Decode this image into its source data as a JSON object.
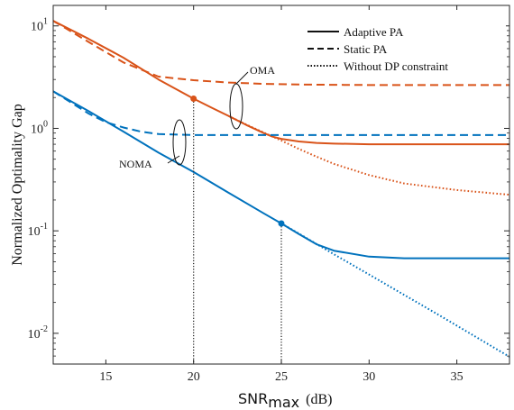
{
  "chart_data": {
    "type": "line",
    "title": "",
    "xlabel": {
      "main": "SNR",
      "subscript": "max",
      "unit": "(dB)"
    },
    "ylabel": "Normalized Optimality Gap",
    "xlim": [
      12,
      38
    ],
    "ylim_log10": [
      -2.3,
      1.2
    ],
    "yscale": "log",
    "grid": false,
    "legend_position": "top-right",
    "x_ticks": [
      15,
      20,
      25,
      30,
      35
    ],
    "y_ticks": [
      {
        "exp": -2,
        "base": "10",
        "sup": "-2"
      },
      {
        "exp": -1,
        "base": "10",
        "sup": "-1"
      },
      {
        "exp": 0,
        "base": "10",
        "sup": "0"
      },
      {
        "exp": 1,
        "base": "10",
        "sup": "1"
      }
    ],
    "legend": [
      {
        "label": "Adaptive PA",
        "dash": "solid"
      },
      {
        "label": "Static PA",
        "dash": "dashed"
      },
      {
        "label": "Without DP constraint",
        "dash": "dotted"
      }
    ],
    "colors": {
      "oma": "#D95319",
      "noma": "#0072BD"
    },
    "series": [
      {
        "group": "oma",
        "style": "solid",
        "x": [
          12,
          14,
          16,
          18,
          20,
          21,
          22,
          23,
          24,
          24.5,
          25,
          26,
          27,
          28,
          30,
          32,
          35,
          38
        ],
        "y": [
          11.2,
          7.5,
          4.9,
          3.0,
          1.95,
          1.6,
          1.32,
          1.08,
          0.9,
          0.83,
          0.79,
          0.745,
          0.72,
          0.71,
          0.7,
          0.7,
          0.7,
          0.7
        ]
      },
      {
        "group": "oma",
        "style": "dashed",
        "x": [
          12,
          14,
          16,
          18,
          20,
          22,
          24,
          26,
          28,
          30,
          32,
          35,
          38
        ],
        "y": [
          11.2,
          7.0,
          4.4,
          3.2,
          2.95,
          2.8,
          2.72,
          2.68,
          2.66,
          2.65,
          2.65,
          2.65,
          2.65
        ]
      },
      {
        "group": "oma",
        "style": "dotted",
        "x": [
          22,
          23,
          24,
          25,
          26,
          27,
          28,
          30,
          32,
          35,
          38
        ],
        "y": [
          1.32,
          1.09,
          0.91,
          0.76,
          0.63,
          0.53,
          0.45,
          0.35,
          0.29,
          0.25,
          0.225
        ]
      },
      {
        "group": "noma",
        "style": "solid",
        "x": [
          12,
          14,
          16,
          18,
          20,
          22,
          24,
          25,
          26,
          27,
          28,
          30,
          32,
          35,
          38
        ],
        "y": [
          2.3,
          1.48,
          0.93,
          0.58,
          0.375,
          0.235,
          0.148,
          0.118,
          0.093,
          0.074,
          0.064,
          0.056,
          0.054,
          0.054,
          0.054
        ]
      },
      {
        "group": "noma",
        "style": "dashed",
        "x": [
          12,
          14,
          15,
          16,
          17,
          18,
          20,
          22,
          25,
          28,
          30,
          32,
          35,
          38
        ],
        "y": [
          2.3,
          1.4,
          1.15,
          1.02,
          0.93,
          0.88,
          0.86,
          0.86,
          0.86,
          0.86,
          0.86,
          0.86,
          0.86,
          0.86
        ]
      },
      {
        "group": "noma",
        "style": "dotted",
        "x": [
          25,
          26,
          28,
          30,
          32,
          34,
          36,
          38
        ],
        "y": [
          0.118,
          0.094,
          0.059,
          0.0375,
          0.0237,
          0.015,
          0.0094,
          0.0059
        ]
      }
    ],
    "markers": [
      {
        "group": "oma",
        "x": 20,
        "y": 1.95
      },
      {
        "group": "noma",
        "x": 25,
        "y": 0.118
      }
    ],
    "annotations": [
      {
        "text": "OMA",
        "target_group": "oma"
      },
      {
        "text": "NOMA",
        "target_group": "noma"
      }
    ]
  }
}
